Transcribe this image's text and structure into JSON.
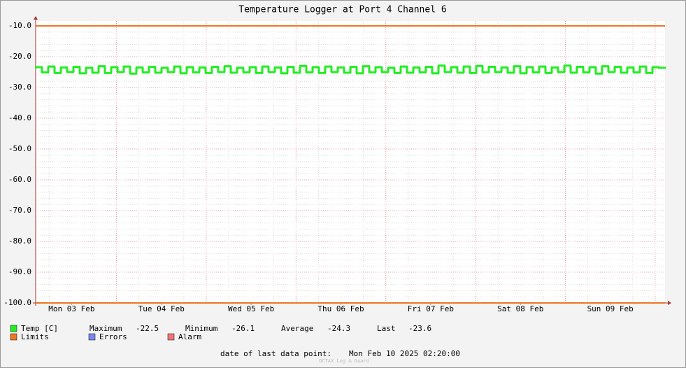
{
  "chart_data": {
    "type": "line",
    "title": "Temperature Logger at Port 4 Channel 6",
    "xlim": [
      0.1,
      7.11
    ],
    "xticks": [
      {
        "value": 0.5,
        "label": "Mon 03 Feb"
      },
      {
        "value": 1.5,
        "label": "Tue 04 Feb"
      },
      {
        "value": 2.5,
        "label": "Wed 05 Feb"
      },
      {
        "value": 3.5,
        "label": "Thu 06 Feb"
      },
      {
        "value": 4.5,
        "label": "Fri 07 Feb"
      },
      {
        "value": 5.5,
        "label": "Sat 08 Feb"
      },
      {
        "value": 6.5,
        "label": "Sun 09 Feb"
      }
    ],
    "ylim": [
      -100,
      -8.4
    ],
    "yticks": [
      {
        "value": -10,
        "label": "-10.0"
      },
      {
        "value": -20,
        "label": "-20.0"
      },
      {
        "value": -30,
        "label": "-30.0"
      },
      {
        "value": -40,
        "label": "-40.0"
      },
      {
        "value": -50,
        "label": "-50.0"
      },
      {
        "value": -60,
        "label": "-60.0"
      },
      {
        "value": -70,
        "label": "-70.0"
      },
      {
        "value": -80,
        "label": "-80.0"
      },
      {
        "value": -90,
        "label": "-90.0"
      },
      {
        "value": -100,
        "label": "-100.0"
      }
    ],
    "grid": true,
    "series": [
      {
        "name": "Temp [C]",
        "color": "#22ee22",
        "values": [
          -23.4,
          -25.1,
          -23.2,
          -25.3,
          -23.5,
          -25.0,
          -23.3,
          -25.4,
          -23.6,
          -25.2,
          -23.1,
          -25.3,
          -23.4,
          -25.0,
          -23.2,
          -25.5,
          -23.5,
          -25.1,
          -23.3,
          -25.2,
          -23.6,
          -25.0,
          -23.2,
          -25.4,
          -23.4,
          -25.1,
          -23.5,
          -25.3,
          -23.3,
          -25.0,
          -23.1,
          -25.2,
          -23.6,
          -25.1,
          -23.4,
          -25.3,
          -23.2,
          -25.0,
          -23.5,
          -25.4,
          -23.3,
          -25.2,
          -23.0,
          -25.1,
          -23.4,
          -25.3,
          -23.2,
          -25.0,
          -23.5,
          -25.2,
          -23.3,
          -25.4,
          -23.1,
          -25.1,
          -23.4,
          -25.0,
          -23.6,
          -25.3,
          -23.2,
          -25.2,
          -23.5,
          -25.1,
          -23.3,
          -25.4,
          -22.9,
          -25.0,
          -23.4,
          -25.2,
          -23.2,
          -25.3,
          -23.0,
          -25.1,
          -23.3,
          -25.0,
          -23.5,
          -25.2,
          -23.1,
          -25.4,
          -23.4,
          -25.1,
          -23.2,
          -25.3,
          -23.5,
          -25.0,
          -22.9,
          -25.2,
          -23.3,
          -25.1,
          -23.4,
          -25.5,
          -23.1,
          -25.0,
          -23.3,
          -25.2,
          -23.5,
          -25.1,
          -23.2,
          -25.3,
          -23.4,
          -23.6
        ]
      }
    ],
    "limits": {
      "name": "Limits",
      "color": "#ee7722",
      "values": [
        -10,
        -100
      ]
    },
    "legend_extra": [
      {
        "name": "Errors",
        "color": "#7788ee"
      },
      {
        "name": "Alarm",
        "color": "#ee7777"
      }
    ],
    "stats": [
      {
        "label": "Maximum",
        "value": -22.5
      },
      {
        "label": "Minimum",
        "value": -26.1
      },
      {
        "label": "Average",
        "value": -24.3
      },
      {
        "label": "Last",
        "value": -23.6
      }
    ],
    "footer": {
      "label": "date of last data point:",
      "value": "Mon Feb 10 2025 02:20:00"
    },
    "watermark": "OCTAX Log & Guard"
  }
}
